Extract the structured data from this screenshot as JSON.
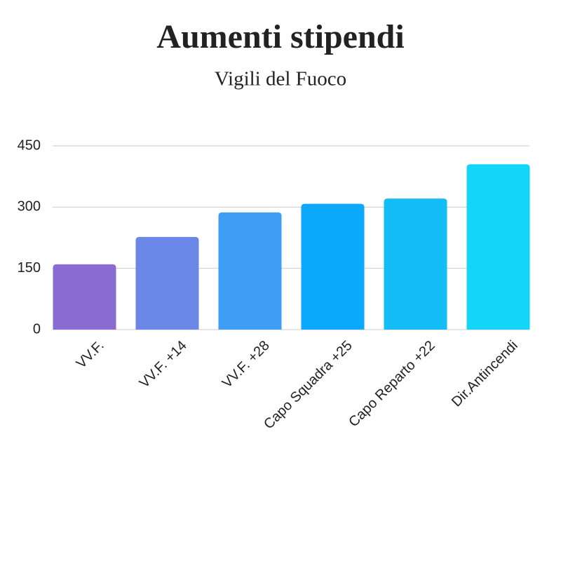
{
  "chart_data": {
    "type": "bar",
    "title": "Aumenti stipendi",
    "subtitle": "Vigili del Fuoco",
    "categories": [
      "VV.F.",
      "VV.F. +14",
      "VV.F. +28",
      "Capo Squadra +25",
      "Capo Reparto +22",
      "Dir.Antincendi"
    ],
    "values": [
      160,
      227,
      287,
      308,
      321,
      405
    ],
    "colors": [
      "#8a6bd1",
      "#6a86e6",
      "#3e9df4",
      "#0ba8fb",
      "#14bdf5",
      "#13d5f8"
    ],
    "ylim": [
      0,
      450
    ],
    "yticks": [
      0,
      150,
      300,
      450
    ],
    "grid": true
  }
}
